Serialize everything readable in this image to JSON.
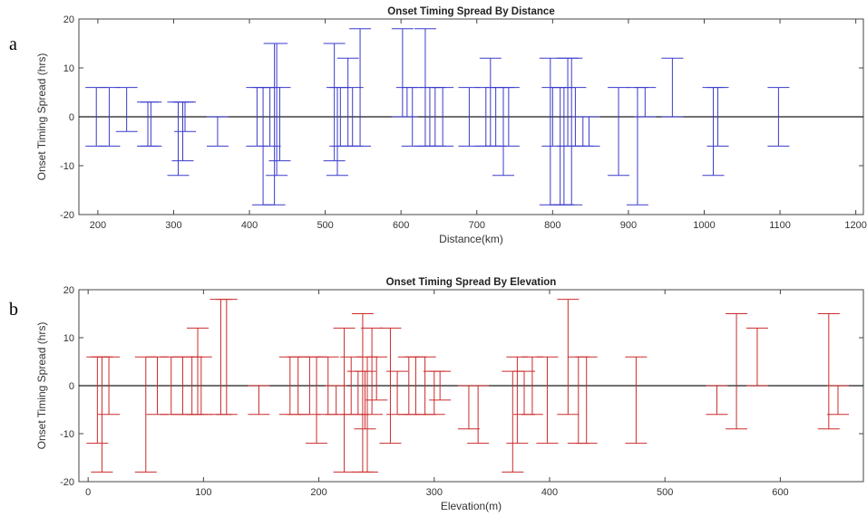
{
  "colors": {
    "blue": "#3a3acc",
    "red": "#cc2a2a",
    "axis": "#444444",
    "zero": "#1a1a1a"
  },
  "chart_data": [
    {
      "type": "errorbar",
      "panel_label": "a",
      "title": "Onset Timing Spread By Distance",
      "xlabel": "Distance(km)",
      "ylabel": "Onset Timing Spread (hrs)",
      "xlim": [
        175,
        1210
      ],
      "ylim": [
        -20,
        20
      ],
      "xticks": [
        200,
        300,
        400,
        500,
        600,
        700,
        800,
        900,
        1000,
        1100,
        1200
      ],
      "yticks": [
        -20,
        -10,
        0,
        10,
        20
      ],
      "grid": false,
      "color": "blue",
      "series": [
        {
          "x": [
            198,
            215,
            238,
            266,
            270,
            306,
            312,
            315,
            358,
            410,
            418,
            427,
            433,
            436,
            440,
            512,
            516,
            520,
            530,
            536,
            546,
            602,
            608,
            615,
            632,
            638,
            645,
            655,
            690,
            712,
            718,
            725,
            735,
            742,
            797,
            800,
            810,
            815,
            820,
            825,
            830,
            840,
            848,
            887,
            912,
            922,
            958,
            1012,
            1018,
            1098
          ],
          "low": [
            -6,
            -6,
            -3,
            -6,
            -6,
            -12,
            -9,
            -3,
            -6,
            -6,
            -18,
            -6,
            -18,
            -12,
            -9,
            -9,
            -12,
            -6,
            -6,
            -6,
            -6,
            0,
            0,
            -6,
            -6,
            -6,
            -6,
            -6,
            -6,
            -6,
            -6,
            -6,
            -12,
            -6,
            -18,
            -6,
            -18,
            -18,
            -6,
            -18,
            -6,
            -6,
            -6,
            -12,
            -18,
            0,
            0,
            -12,
            -6,
            -6
          ],
          "high": [
            6,
            6,
            6,
            3,
            3,
            3,
            3,
            3,
            0,
            6,
            6,
            6,
            15,
            15,
            6,
            15,
            6,
            6,
            12,
            6,
            18,
            18,
            6,
            6,
            18,
            6,
            6,
            6,
            6,
            6,
            12,
            6,
            6,
            6,
            12,
            6,
            6,
            6,
            12,
            12,
            6,
            0,
            0,
            6,
            6,
            6,
            12,
            6,
            6,
            6
          ]
        }
      ]
    },
    {
      "type": "errorbar",
      "panel_label": "b",
      "title": "Onset Timing Spread By Elevation",
      "xlabel": "Elevation(m)",
      "ylabel": "Onset Timing Spread (hrs)",
      "xlim": [
        -8,
        672
      ],
      "ylim": [
        -20,
        20
      ],
      "xticks": [
        0,
        100,
        200,
        300,
        400,
        500,
        600
      ],
      "yticks": [
        -20,
        -10,
        0,
        10,
        20
      ],
      "grid": false,
      "color": "red",
      "series": [
        {
          "x": [
            8,
            12,
            18,
            50,
            60,
            72,
            82,
            90,
            95,
            98,
            115,
            120,
            148,
            175,
            182,
            192,
            198,
            208,
            215,
            222,
            228,
            234,
            238,
            240,
            242,
            246,
            250,
            262,
            268,
            278,
            284,
            292,
            300,
            305,
            330,
            338,
            368,
            372,
            378,
            385,
            398,
            416,
            425,
            432,
            475,
            545,
            562,
            580,
            642,
            650
          ],
          "low": [
            -12,
            -18,
            -6,
            -18,
            -6,
            -6,
            -6,
            -6,
            -6,
            -6,
            -6,
            -6,
            -6,
            -6,
            -6,
            -6,
            -12,
            -6,
            -6,
            -18,
            -6,
            -6,
            -18,
            -9,
            -18,
            -6,
            -3,
            -12,
            -6,
            -6,
            -6,
            -6,
            -6,
            -3,
            -9,
            -12,
            -18,
            -12,
            -6,
            -6,
            -12,
            -6,
            -12,
            -12,
            -12,
            -6,
            -9,
            0,
            -9,
            -6
          ],
          "high": [
            6,
            6,
            6,
            6,
            6,
            6,
            6,
            6,
            12,
            6,
            18,
            18,
            0,
            6,
            6,
            6,
            6,
            6,
            0,
            12,
            6,
            3,
            15,
            3,
            6,
            12,
            6,
            12,
            3,
            6,
            6,
            6,
            3,
            3,
            0,
            0,
            3,
            6,
            3,
            6,
            6,
            18,
            6,
            6,
            6,
            0,
            15,
            12,
            15,
            0
          ]
        }
      ]
    }
  ]
}
